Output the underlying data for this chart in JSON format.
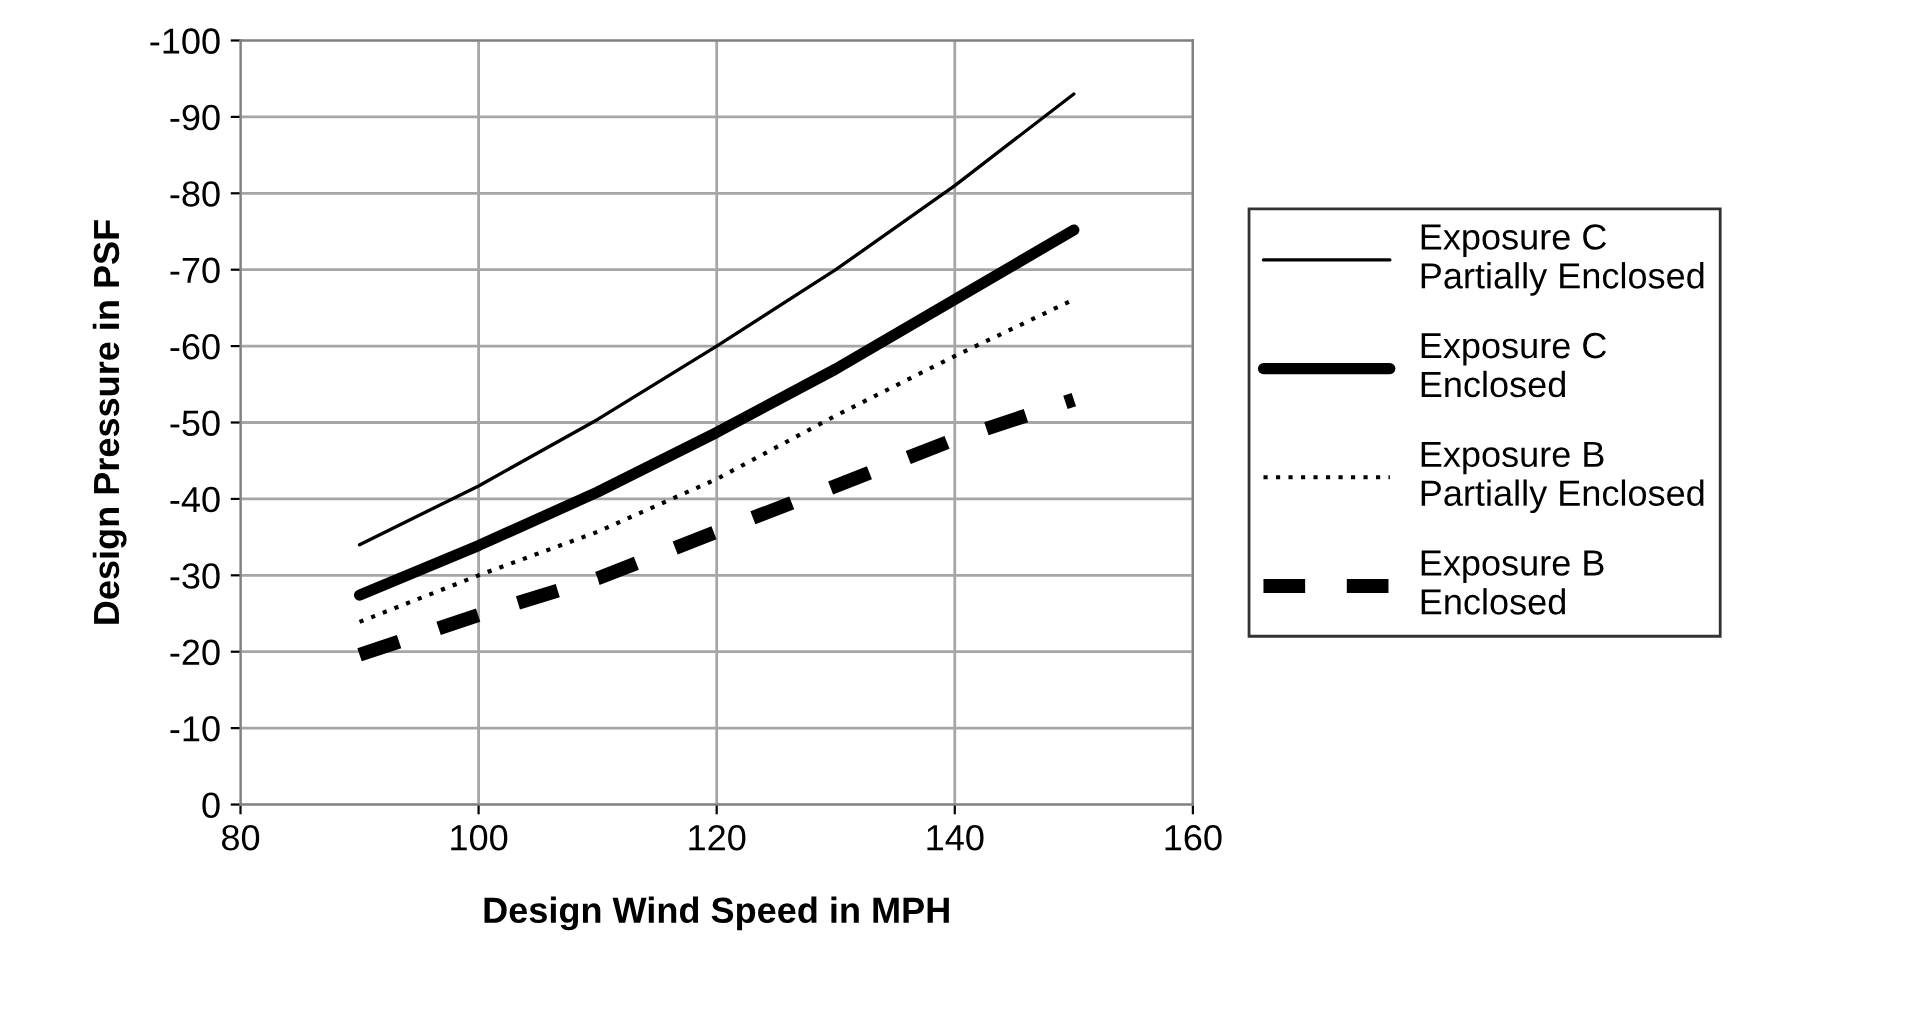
{
  "chart_data": {
    "type": "line",
    "xlabel": "Design Wind Speed in MPH",
    "ylabel": "Design Pressure in PSF",
    "x": [
      90,
      100,
      110,
      120,
      130,
      140,
      150
    ],
    "series": [
      {
        "name": "Exposure C\nPartially Enclosed",
        "color": "#000000",
        "line_style": "solid",
        "values": [
          -34,
          -41.7,
          -50.4,
          -60,
          -70,
          -81,
          -93
        ]
      },
      {
        "name": "Exposure C\nEnclosed",
        "color": "#000000",
        "line_style": "solid",
        "values": [
          -27.4,
          -33.9,
          -40.9,
          -48.7,
          -57,
          -66.1,
          -75.2
        ]
      },
      {
        "name": "Exposure B\nPartially Enclosed",
        "color": "#000000",
        "line_style": "dotted",
        "values": [
          -23.9,
          -30,
          -35.7,
          -42.6,
          -50.9,
          -58.7,
          -66.1
        ]
      },
      {
        "name": "Exposure B\nEnclosed",
        "color": "#000000",
        "line_style": "dashed",
        "values": [
          -19.6,
          -24.8,
          -29.6,
          -35.7,
          -41.7,
          -47.8,
          -53
        ]
      }
    ],
    "xlim": [
      80,
      160
    ],
    "xticks": [
      80,
      100,
      120,
      140,
      160
    ],
    "ylim": [
      0,
      -100
    ],
    "yticks": [
      0,
      -10,
      -20,
      -30,
      -40,
      -50,
      -60,
      -70,
      -80,
      -90,
      -100
    ],
    "grid": true,
    "legend": "right",
    "marker": "none"
  }
}
